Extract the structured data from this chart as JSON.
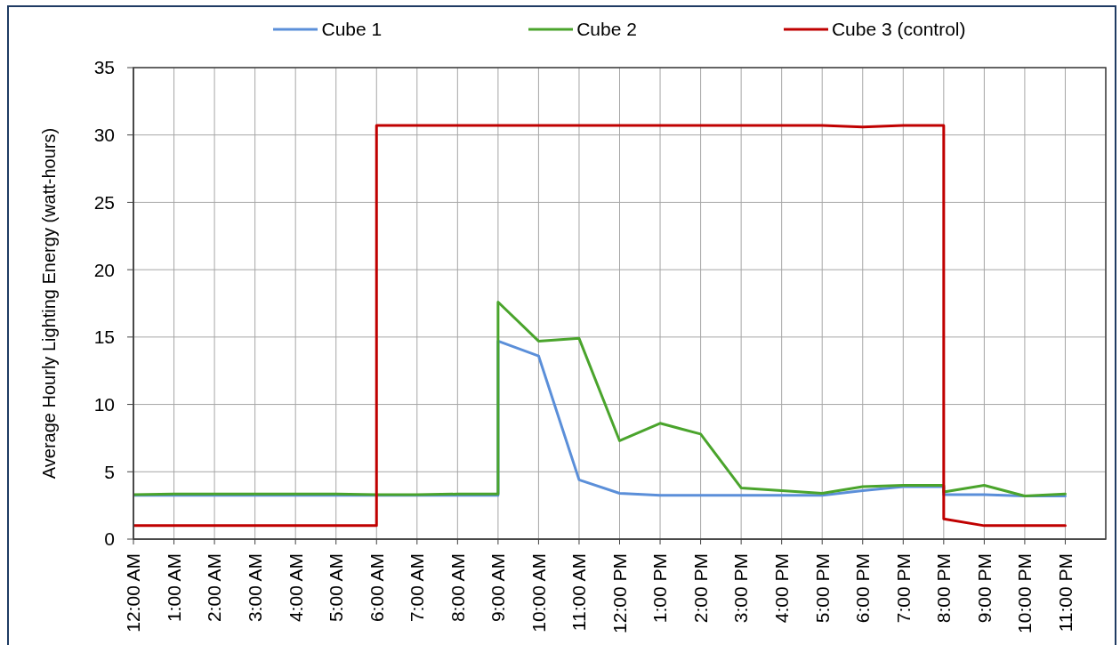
{
  "chart_data": {
    "type": "line",
    "ylabel": "Average Hourly Lighting Energy (watt-hours)",
    "xlim": [
      0,
      24
    ],
    "xticks": [
      {
        "value": 0,
        "label": "12:00 AM"
      },
      {
        "value": 1,
        "label": "1:00 AM"
      },
      {
        "value": 2,
        "label": "2:00 AM"
      },
      {
        "value": 3,
        "label": "3:00 AM"
      },
      {
        "value": 4,
        "label": "4:00 AM"
      },
      {
        "value": 5,
        "label": "5:00 AM"
      },
      {
        "value": 6,
        "label": "6:00 AM"
      },
      {
        "value": 7,
        "label": "7:00 AM"
      },
      {
        "value": 8,
        "label": "8:00 AM"
      },
      {
        "value": 9,
        "label": "9:00 AM"
      },
      {
        "value": 10,
        "label": "10:00 AM"
      },
      {
        "value": 11,
        "label": "11:00 AM"
      },
      {
        "value": 12,
        "label": "12:00 PM"
      },
      {
        "value": 13,
        "label": "1:00 PM"
      },
      {
        "value": 14,
        "label": "2:00 PM"
      },
      {
        "value": 15,
        "label": "3:00 PM"
      },
      {
        "value": 16,
        "label": "4:00 PM"
      },
      {
        "value": 17,
        "label": "5:00 PM"
      },
      {
        "value": 18,
        "label": "6:00 PM"
      },
      {
        "value": 19,
        "label": "7:00 PM"
      },
      {
        "value": 20,
        "label": "8:00 PM"
      },
      {
        "value": 21,
        "label": "9:00 PM"
      },
      {
        "value": 22,
        "label": "10:00 PM"
      },
      {
        "value": 23,
        "label": "11:00 PM"
      }
    ],
    "ylim": [
      0,
      35
    ],
    "yticks": [
      0,
      5,
      10,
      15,
      20,
      25,
      30,
      35
    ],
    "grid": true,
    "legend": "top",
    "series": [
      {
        "name": "Cube 1",
        "color": "#5b8fd9",
        "x": [
          0,
          1,
          2,
          3,
          4,
          5,
          6,
          7,
          8,
          9,
          9,
          10,
          11,
          12,
          13,
          14,
          15,
          16,
          17,
          18,
          19,
          20,
          20,
          21,
          22,
          23
        ],
        "values": [
          3.25,
          3.25,
          3.25,
          3.25,
          3.25,
          3.25,
          3.25,
          3.25,
          3.25,
          3.25,
          14.7,
          13.6,
          4.4,
          3.4,
          3.25,
          3.25,
          3.25,
          3.25,
          3.25,
          3.6,
          3.9,
          3.9,
          3.3,
          3.3,
          3.2,
          3.2
        ]
      },
      {
        "name": "Cube 2",
        "color": "#4aa42c",
        "x": [
          0,
          1,
          2,
          3,
          4,
          5,
          6,
          7,
          8,
          9,
          9,
          10,
          11,
          12,
          13,
          14,
          15,
          16,
          17,
          18,
          19,
          20,
          20,
          21,
          22,
          23
        ],
        "values": [
          3.3,
          3.35,
          3.35,
          3.35,
          3.35,
          3.35,
          3.3,
          3.3,
          3.35,
          3.35,
          17.6,
          14.7,
          14.9,
          7.3,
          8.6,
          7.8,
          3.8,
          3.6,
          3.4,
          3.9,
          4,
          4,
          3.5,
          4,
          3.2,
          3.35
        ]
      },
      {
        "name": "Cube 3 (control)",
        "color": "#c00000",
        "x": [
          0,
          1,
          2,
          3,
          4,
          5,
          6,
          6,
          7,
          8,
          9,
          10,
          11,
          12,
          13,
          14,
          15,
          16,
          17,
          18,
          19,
          20,
          20,
          21,
          22,
          23
        ],
        "values": [
          1,
          1,
          1,
          1,
          1,
          1,
          1,
          30.7,
          30.7,
          30.7,
          30.7,
          30.7,
          30.7,
          30.7,
          30.7,
          30.7,
          30.7,
          30.7,
          30.7,
          30.6,
          30.7,
          30.7,
          1.5,
          1,
          1,
          1
        ]
      }
    ]
  }
}
